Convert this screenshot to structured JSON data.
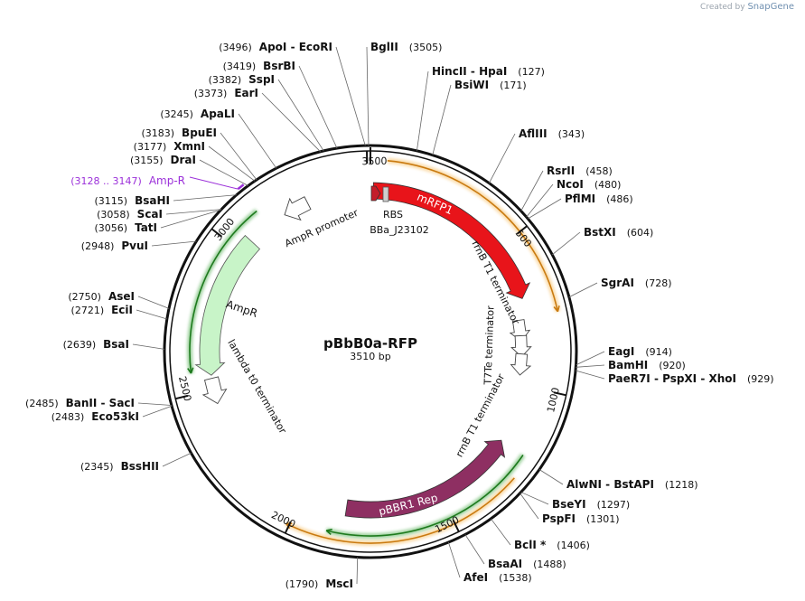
{
  "credit": {
    "prefix": "Created by",
    "brand": "SnapGene"
  },
  "plasmid": {
    "name": "pBbB0a-RFP",
    "length": "3510 bp",
    "total_bp": 3510
  },
  "ticks": [
    {
      "bp": 500,
      "label": "500"
    },
    {
      "bp": 1000,
      "label": "1000"
    },
    {
      "bp": 1500,
      "label": "1500"
    },
    {
      "bp": 2000,
      "label": "2000"
    },
    {
      "bp": 2500,
      "label": "2500"
    },
    {
      "bp": 3000,
      "label": "3000"
    },
    {
      "bp": 3500,
      "label": "3500"
    }
  ],
  "sites": [
    {
      "pos": "(3496)",
      "names": "ApoI - EcoRI",
      "bp": 3496
    },
    {
      "pos": "(3505)",
      "names": "BglII",
      "bp": 3505
    },
    {
      "pos": "(127)",
      "names": "HincII - HpaI",
      "bp": 127
    },
    {
      "pos": "(171)",
      "names": "BsiWI",
      "bp": 171
    },
    {
      "pos": "(343)",
      "names": "AflIII",
      "bp": 343
    },
    {
      "pos": "(458)",
      "names": "RsrII",
      "bp": 458
    },
    {
      "pos": "(480)",
      "names": "NcoI",
      "bp": 480
    },
    {
      "pos": "(486)",
      "names": "PflMI",
      "bp": 486
    },
    {
      "pos": "(604)",
      "names": "BstXI",
      "bp": 604
    },
    {
      "pos": "(728)",
      "names": "SgrAI",
      "bp": 728
    },
    {
      "pos": "(914)",
      "names": "EagI",
      "bp": 914
    },
    {
      "pos": "(920)",
      "names": "BamHI",
      "bp": 920
    },
    {
      "pos": "(929)",
      "names": "PaeR7I - PspXI - XhoI",
      "bp": 929
    },
    {
      "pos": "(1218)",
      "names": "AlwNI - BstAPI",
      "bp": 1218
    },
    {
      "pos": "(1297)",
      "names": "BseYI",
      "bp": 1297
    },
    {
      "pos": "(1301)",
      "names": "PspFI",
      "bp": 1301
    },
    {
      "pos": "(1406)",
      "names": "BclI *",
      "bp": 1406
    },
    {
      "pos": "(1488)",
      "names": "BsaAI",
      "bp": 1488
    },
    {
      "pos": "(1538)",
      "names": "AfeI",
      "bp": 1538
    },
    {
      "pos": "(1790)",
      "names": "MscI",
      "bp": 1790
    },
    {
      "pos": "(2345)",
      "names": "BssHII",
      "bp": 2345
    },
    {
      "pos": "(2483)",
      "names": "Eco53kI",
      "bp": 2483
    },
    {
      "pos": "(2485)",
      "names": "BanII - SacI",
      "bp": 2485
    },
    {
      "pos": "(2639)",
      "names": "BsaI",
      "bp": 2639
    },
    {
      "pos": "(2721)",
      "names": "EciI",
      "bp": 2721
    },
    {
      "pos": "(2750)",
      "names": "AseI",
      "bp": 2750
    },
    {
      "pos": "(2948)",
      "names": "PvuI",
      "bp": 2948
    },
    {
      "pos": "(3056)",
      "names": "TatI",
      "bp": 3056
    },
    {
      "pos": "(3058)",
      "names": "ScaI",
      "bp": 3058
    },
    {
      "pos": "(3115)",
      "names": "BsaHI",
      "bp": 3115
    },
    {
      "pos": "(3155)",
      "names": "DraI",
      "bp": 3155
    },
    {
      "pos": "(3177)",
      "names": "XmnI",
      "bp": 3177
    },
    {
      "pos": "(3183)",
      "names": "BpuEI",
      "bp": 3183
    },
    {
      "pos": "(3245)",
      "names": "ApaLI",
      "bp": 3245
    },
    {
      "pos": "(3373)",
      "names": "EarI",
      "bp": 3373
    },
    {
      "pos": "(3382)",
      "names": "SspI",
      "bp": 3382
    },
    {
      "pos": "(3419)",
      "names": "BsrBI",
      "bp": 3419
    }
  ],
  "primer": {
    "pos": "(3128 .. 3147)",
    "name": "Amp-R",
    "color": "#9b30d9",
    "start": 3128,
    "end": 3147
  },
  "features": [
    {
      "name": "mRFP1",
      "start": 10,
      "end": 690,
      "type": "cds",
      "color": "#e8141a"
    },
    {
      "name": "pBBR1 Rep",
      "start": 1180,
      "end": 1840,
      "type": "cds",
      "color": "#8e2f62"
    },
    {
      "name": "AmpR",
      "start": 3050,
      "end": 2550,
      "type": "cds",
      "color": "#c8f4c8"
    },
    {
      "name": "RBS",
      "start": 3458,
      "end": 3468,
      "type": "rbs",
      "color": "#d8d8d8"
    },
    {
      "name": "BBa_J23102",
      "start": 3418,
      "end": 3450,
      "type": "promoter",
      "color": "#c41e2a"
    },
    {
      "name": "AmpR promoter",
      "start": 3290,
      "end": 3200,
      "type": "promoter",
      "color": "#ffffff"
    },
    {
      "name": "rrnB T1 terminator",
      "start": 775,
      "end": 820,
      "type": "terminator",
      "color": "#ffffff"
    },
    {
      "name": "T7Te terminator",
      "start": 840,
      "end": 870,
      "type": "terminator",
      "color": "#ffffff"
    },
    {
      "name": "rrnB T1 terminator",
      "start": 900,
      "end": 945,
      "type": "terminator",
      "color": "#ffffff"
    },
    {
      "name": "lambda t0 terminator",
      "start": 2520,
      "end": 2475,
      "type": "terminator",
      "color": "#ffffff"
    }
  ],
  "outer_arcs": [
    {
      "start": 50,
      "end": 760,
      "color": "#f5b041"
    },
    {
      "start": 1280,
      "end": 2010,
      "color": "#f5b041"
    },
    {
      "start": 1210,
      "end": 1890,
      "color": "#2e9e2e"
    },
    {
      "start": 3130,
      "end": 2565,
      "color": "#2e9e2e"
    }
  ]
}
